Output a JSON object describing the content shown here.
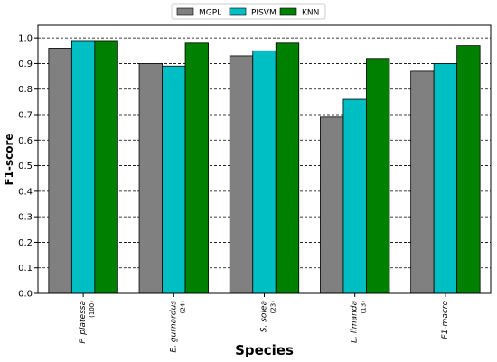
{
  "chart_data": {
    "type": "bar",
    "categories": [
      {
        "name": "P. platessa",
        "sub": "(100)"
      },
      {
        "name": "E. gurnardus",
        "sub": "(24)"
      },
      {
        "name": "S. solea",
        "sub": "(23)"
      },
      {
        "name": "L. limanda",
        "sub": "(13)"
      },
      {
        "name": "F1-macro",
        "sub": ""
      }
    ],
    "series": [
      {
        "name": "MGPL",
        "color": "#808080",
        "values": [
          0.96,
          0.9,
          0.93,
          0.69,
          0.87
        ]
      },
      {
        "name": "PISVM",
        "color": "#00bfc4",
        "values": [
          0.99,
          0.89,
          0.95,
          0.76,
          0.9
        ]
      },
      {
        "name": "KNN",
        "color": "#008000",
        "values": [
          0.99,
          0.98,
          0.98,
          0.92,
          0.97
        ]
      }
    ],
    "xlabel": "Species",
    "ylabel": "F1-score",
    "ylim": [
      0.0,
      1.05
    ],
    "yticks": [
      "0.0",
      "0.1",
      "0.2",
      "0.3",
      "0.4",
      "0.5",
      "0.6",
      "0.7",
      "0.8",
      "0.9",
      "1.0"
    ],
    "grid": "horizontal dashed",
    "legend_position": "top-center"
  }
}
